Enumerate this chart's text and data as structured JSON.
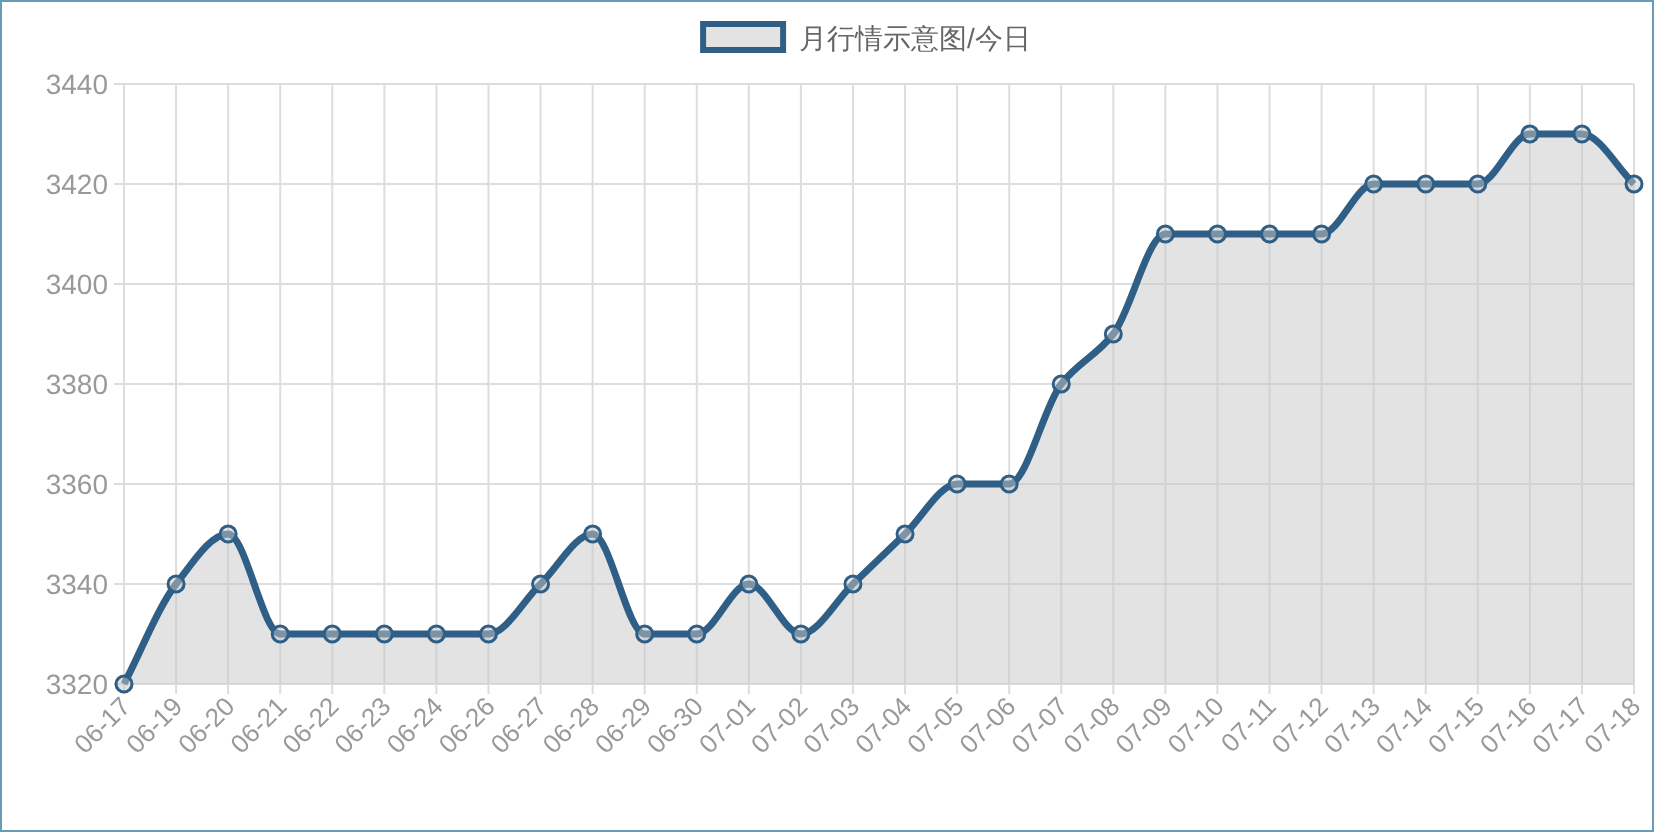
{
  "chart_data": {
    "type": "area",
    "categories": [
      "06-17",
      "06-19",
      "06-20",
      "06-21",
      "06-22",
      "06-23",
      "06-24",
      "06-26",
      "06-27",
      "06-28",
      "06-29",
      "06-30",
      "07-01",
      "07-02",
      "07-03",
      "07-04",
      "07-05",
      "07-06",
      "07-07",
      "07-08",
      "07-09",
      "07-10",
      "07-11",
      "07-12",
      "07-13",
      "07-14",
      "07-15",
      "07-16",
      "07-17",
      "07-18"
    ],
    "series": [
      {
        "name": "月行情示意图/今日",
        "color": "#2f5f86",
        "values": [
          3320,
          3340,
          3350,
          3330,
          3330,
          3330,
          3330,
          3330,
          3340,
          3350,
          3330,
          3330,
          3340,
          3330,
          3340,
          3350,
          3360,
          3360,
          3380,
          3390,
          3410,
          3410,
          3410,
          3410,
          3420,
          3420,
          3420,
          3430,
          3430,
          3420
        ]
      }
    ],
    "ylim": [
      3320,
      3440
    ],
    "yticks": [
      3320,
      3340,
      3360,
      3380,
      3400,
      3420,
      3440
    ],
    "grid": true,
    "legend": "top",
    "marker": "circle"
  }
}
